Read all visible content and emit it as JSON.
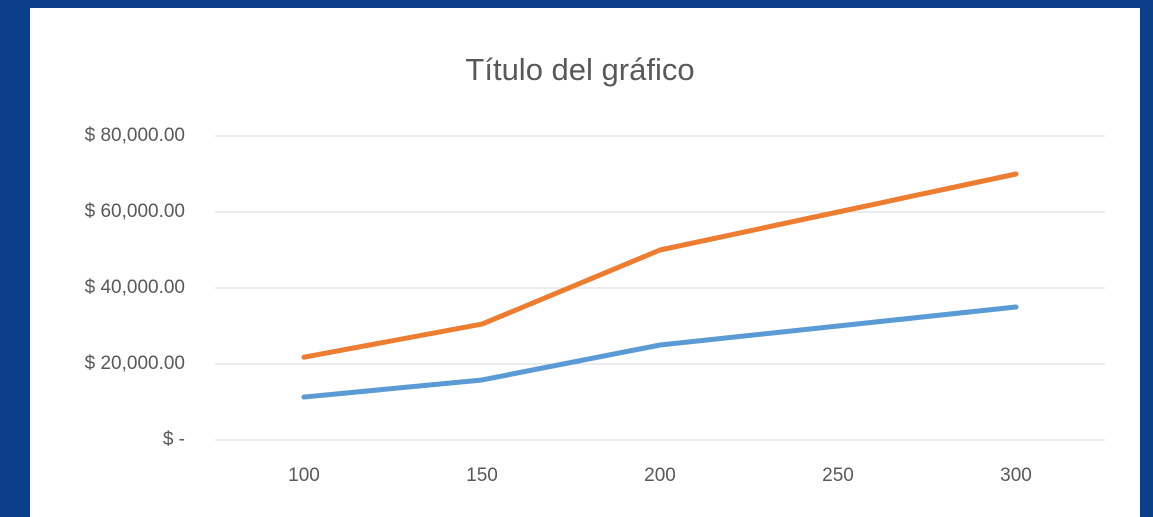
{
  "chart_data": {
    "type": "line",
    "title": "Título del gráfico",
    "categories": [
      "100",
      "150",
      "200",
      "250",
      "300"
    ],
    "series": [
      {
        "color": "#5b9bd5",
        "values": [
          11300,
          15800,
          25000,
          30000,
          35000
        ]
      },
      {
        "color": "#ed7d31",
        "values": [
          21800,
          30500,
          50000,
          60000,
          70000
        ]
      }
    ],
    "ylim": [
      0,
      80000
    ],
    "yticks": [
      {
        "value": 0,
        "label": "$ -"
      },
      {
        "value": 20000,
        "label": "$ 20,000.00"
      },
      {
        "value": 40000,
        "label": "$ 40,000.00"
      },
      {
        "value": 60000,
        "label": "$ 60,000.00"
      },
      {
        "value": 80000,
        "label": "$ 80,000.00"
      }
    ],
    "grid": true
  }
}
